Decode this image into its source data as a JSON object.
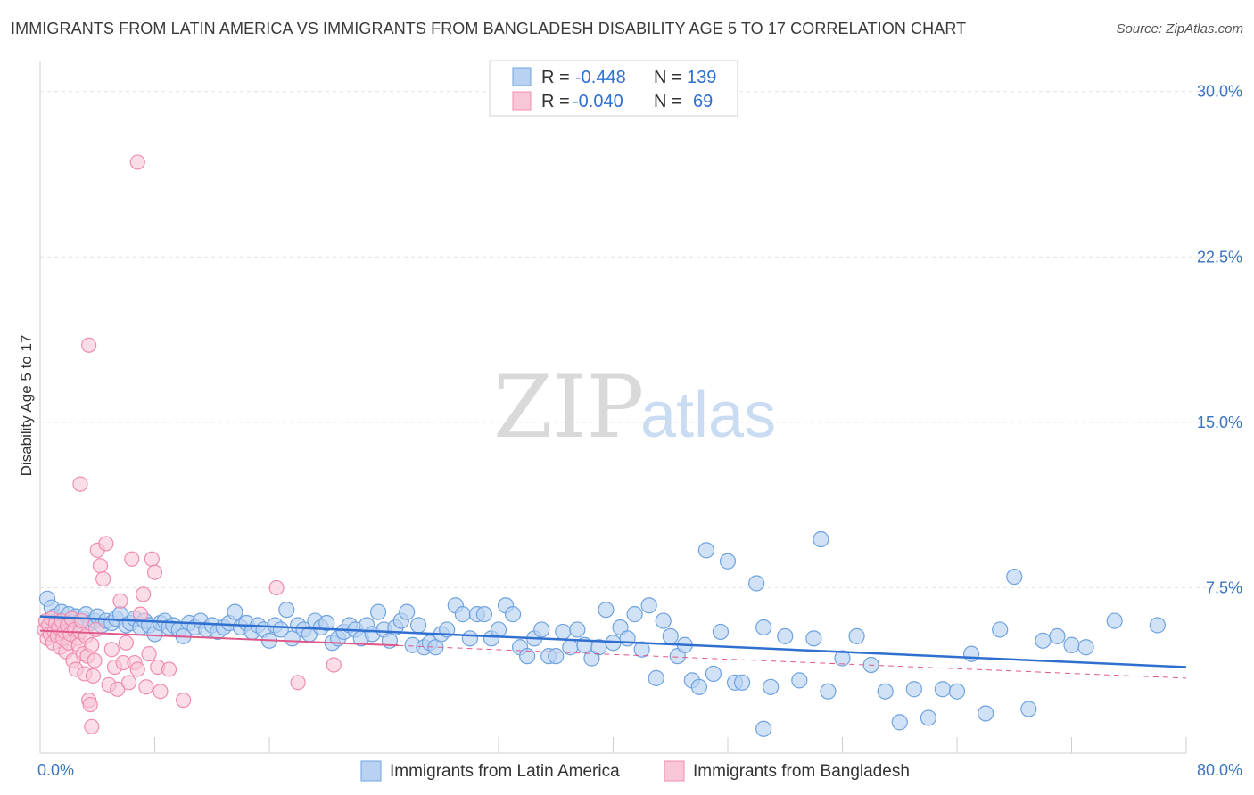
{
  "header": {
    "title": "IMMIGRANTS FROM LATIN AMERICA VS IMMIGRANTS FROM BANGLADESH DISABILITY AGE 5 TO 17 CORRELATION CHART",
    "source": "Source: ZipAtlas.com"
  },
  "watermark": {
    "zip": "ZIP",
    "atlas": "atlas"
  },
  "colors": {
    "blue": "#6fa3e0",
    "blue_fill": "#b9d2f2",
    "blue_line": "#2f6fcf",
    "pink": "#f08cb0",
    "pink_fill": "#f8c6d7",
    "pink_line": "#e0578a",
    "grid": "#e2e2e2",
    "axis_text": "#3b74c4"
  },
  "legend": {
    "rows": [
      {
        "r_label": "R = ",
        "r_value": "-0.448",
        "n_label": "N = ",
        "n_value": "139"
      },
      {
        "r_label": "R = ",
        "r_value": "-0.040",
        "n_label": "N = ",
        "n_value": "69"
      }
    ]
  },
  "bottom_legend": {
    "series1": "Immigrants from Latin America",
    "series2": "Immigrants from Bangladesh"
  },
  "chart_data": {
    "type": "scatter",
    "title": "IMMIGRANTS FROM LATIN AMERICA VS IMMIGRANTS FROM BANGLADESH DISABILITY AGE 5 TO 17 CORRELATION CHART",
    "xlabel": "",
    "ylabel": "Disability Age 5 to 17",
    "xlim": [
      0,
      80
    ],
    "ylim": [
      0,
      31
    ],
    "x_tick_labels": [
      "0.0%",
      "80.0%"
    ],
    "y_ticks": [
      7.5,
      15.0,
      22.5,
      30.0
    ],
    "y_tick_labels": [
      "7.5%",
      "15.0%",
      "22.5%",
      "30.0%"
    ],
    "series": [
      {
        "name": "Immigrants from Latin America",
        "R": -0.448,
        "N": 139,
        "trend": {
          "x": [
            0,
            80
          ],
          "y": [
            6.2,
            3.9
          ]
        },
        "points": [
          [
            0.5,
            7.0
          ],
          [
            0.8,
            6.6
          ],
          [
            1.0,
            6.2
          ],
          [
            1.2,
            6.0
          ],
          [
            1.5,
            6.4
          ],
          [
            1.8,
            6.1
          ],
          [
            2.0,
            6.3
          ],
          [
            2.2,
            5.9
          ],
          [
            2.5,
            6.2
          ],
          [
            2.8,
            6.0
          ],
          [
            3.0,
            6.1
          ],
          [
            3.2,
            6.3
          ],
          [
            3.5,
            5.9
          ],
          [
            3.8,
            6.0
          ],
          [
            4.0,
            6.2
          ],
          [
            4.3,
            5.8
          ],
          [
            4.6,
            6.0
          ],
          [
            5.0,
            5.9
          ],
          [
            5.3,
            6.1
          ],
          [
            5.6,
            6.3
          ],
          [
            6.0,
            5.8
          ],
          [
            6.3,
            5.9
          ],
          [
            6.6,
            6.1
          ],
          [
            7.0,
            5.7
          ],
          [
            7.3,
            6.0
          ],
          [
            7.6,
            5.8
          ],
          [
            8.0,
            5.4
          ],
          [
            8.4,
            5.9
          ],
          [
            8.7,
            6.0
          ],
          [
            9.0,
            5.7
          ],
          [
            9.3,
            5.8
          ],
          [
            9.7,
            5.6
          ],
          [
            10.0,
            5.3
          ],
          [
            10.4,
            5.9
          ],
          [
            10.8,
            5.7
          ],
          [
            11.2,
            6.0
          ],
          [
            11.6,
            5.6
          ],
          [
            12.0,
            5.8
          ],
          [
            12.4,
            5.5
          ],
          [
            12.8,
            5.7
          ],
          [
            13.2,
            5.9
          ],
          [
            13.6,
            6.4
          ],
          [
            14.0,
            5.7
          ],
          [
            14.4,
            5.9
          ],
          [
            14.8,
            5.5
          ],
          [
            15.2,
            5.8
          ],
          [
            15.6,
            5.6
          ],
          [
            16.0,
            5.1
          ],
          [
            16.4,
            5.8
          ],
          [
            16.8,
            5.6
          ],
          [
            17.2,
            6.5
          ],
          [
            17.6,
            5.2
          ],
          [
            18.0,
            5.8
          ],
          [
            18.4,
            5.6
          ],
          [
            18.8,
            5.4
          ],
          [
            19.2,
            6.0
          ],
          [
            19.6,
            5.7
          ],
          [
            20.0,
            5.9
          ],
          [
            20.4,
            5.0
          ],
          [
            20.8,
            5.2
          ],
          [
            21.2,
            5.5
          ],
          [
            21.6,
            5.8
          ],
          [
            22.0,
            5.6
          ],
          [
            22.4,
            5.2
          ],
          [
            22.8,
            5.8
          ],
          [
            23.2,
            5.4
          ],
          [
            23.6,
            6.4
          ],
          [
            24.0,
            5.6
          ],
          [
            24.4,
            5.1
          ],
          [
            24.8,
            5.7
          ],
          [
            25.2,
            6.0
          ],
          [
            25.6,
            6.4
          ],
          [
            26.0,
            4.9
          ],
          [
            26.4,
            5.8
          ],
          [
            26.8,
            4.8
          ],
          [
            27.2,
            5.0
          ],
          [
            27.6,
            4.8
          ],
          [
            28.0,
            5.4
          ],
          [
            28.4,
            5.6
          ],
          [
            29.0,
            6.7
          ],
          [
            29.5,
            6.3
          ],
          [
            30.0,
            5.2
          ],
          [
            30.5,
            6.3
          ],
          [
            31.0,
            6.3
          ],
          [
            31.5,
            5.2
          ],
          [
            32.0,
            5.6
          ],
          [
            32.5,
            6.7
          ],
          [
            33.0,
            6.3
          ],
          [
            33.5,
            4.8
          ],
          [
            34.0,
            4.4
          ],
          [
            34.5,
            5.2
          ],
          [
            35.0,
            5.6
          ],
          [
            35.5,
            4.4
          ],
          [
            36.0,
            4.4
          ],
          [
            36.5,
            5.5
          ],
          [
            37.0,
            4.8
          ],
          [
            37.5,
            5.6
          ],
          [
            38.0,
            4.9
          ],
          [
            38.5,
            4.3
          ],
          [
            39.0,
            4.8
          ],
          [
            39.5,
            6.5
          ],
          [
            40.0,
            5.0
          ],
          [
            40.5,
            5.7
          ],
          [
            41.0,
            5.2
          ],
          [
            41.5,
            6.3
          ],
          [
            42.0,
            4.7
          ],
          [
            42.5,
            6.7
          ],
          [
            43.0,
            3.4
          ],
          [
            43.5,
            6.0
          ],
          [
            44.0,
            5.3
          ],
          [
            44.5,
            4.4
          ],
          [
            45.0,
            4.9
          ],
          [
            45.5,
            3.3
          ],
          [
            46.0,
            3.0
          ],
          [
            46.5,
            9.2
          ],
          [
            47.0,
            3.6
          ],
          [
            47.5,
            5.5
          ],
          [
            48.0,
            8.7
          ],
          [
            48.5,
            3.2
          ],
          [
            49.0,
            3.2
          ],
          [
            50.0,
            7.7
          ],
          [
            50.5,
            5.7
          ],
          [
            51.0,
            3.0
          ],
          [
            52.0,
            5.3
          ],
          [
            53.0,
            3.3
          ],
          [
            54.0,
            5.2
          ],
          [
            54.5,
            9.7
          ],
          [
            55.0,
            2.8
          ],
          [
            56.0,
            4.3
          ],
          [
            57.0,
            5.3
          ],
          [
            58.0,
            4.0
          ],
          [
            59.0,
            2.8
          ],
          [
            60.0,
            1.4
          ],
          [
            61.0,
            2.9
          ],
          [
            62.0,
            1.6
          ],
          [
            63.0,
            2.9
          ],
          [
            64.0,
            2.8
          ],
          [
            65.0,
            4.5
          ],
          [
            66.0,
            1.8
          ],
          [
            67.0,
            5.6
          ],
          [
            68.0,
            8.0
          ],
          [
            69.0,
            2.0
          ],
          [
            70.0,
            5.1
          ],
          [
            71.0,
            5.3
          ],
          [
            72.0,
            4.9
          ],
          [
            73.0,
            4.8
          ],
          [
            75.0,
            6.0
          ],
          [
            78.0,
            5.8
          ],
          [
            50.5,
            1.1
          ]
        ]
      },
      {
        "name": "Immigrants from Bangladesh",
        "R": -0.04,
        "N": 69,
        "trend": {
          "x": [
            0,
            80
          ],
          "y": [
            5.55,
            3.4
          ]
        },
        "points": [
          [
            0.3,
            5.6
          ],
          [
            0.4,
            6.0
          ],
          [
            0.5,
            5.2
          ],
          [
            0.6,
            5.8
          ],
          [
            0.7,
            5.4
          ],
          [
            0.8,
            6.1
          ],
          [
            0.9,
            5.0
          ],
          [
            1.0,
            5.5
          ],
          [
            1.1,
            5.9
          ],
          [
            1.2,
            5.3
          ],
          [
            1.3,
            5.7
          ],
          [
            1.4,
            4.8
          ],
          [
            1.5,
            6.0
          ],
          [
            1.6,
            5.2
          ],
          [
            1.7,
            5.5
          ],
          [
            1.8,
            4.6
          ],
          [
            1.9,
            5.8
          ],
          [
            2.0,
            5.0
          ],
          [
            2.1,
            5.4
          ],
          [
            2.2,
            6.1
          ],
          [
            2.3,
            4.2
          ],
          [
            2.4,
            5.6
          ],
          [
            2.5,
            3.8
          ],
          [
            2.6,
            5.2
          ],
          [
            2.7,
            4.9
          ],
          [
            2.8,
            5.5
          ],
          [
            2.9,
            6.0
          ],
          [
            3.0,
            4.5
          ],
          [
            3.1,
            3.6
          ],
          [
            3.2,
            5.3
          ],
          [
            3.3,
            4.4
          ],
          [
            3.4,
            2.4
          ],
          [
            3.5,
            2.2
          ],
          [
            3.6,
            4.9
          ],
          [
            3.7,
            3.5
          ],
          [
            3.8,
            4.2
          ],
          [
            3.9,
            5.6
          ],
          [
            4.0,
            9.2
          ],
          [
            4.2,
            8.5
          ],
          [
            4.4,
            7.9
          ],
          [
            4.6,
            9.5
          ],
          [
            4.8,
            3.1
          ],
          [
            5.0,
            4.7
          ],
          [
            5.2,
            3.9
          ],
          [
            5.4,
            2.9
          ],
          [
            5.6,
            6.9
          ],
          [
            5.8,
            4.1
          ],
          [
            6.0,
            5.0
          ],
          [
            6.2,
            3.2
          ],
          [
            6.4,
            8.8
          ],
          [
            6.6,
            4.1
          ],
          [
            6.8,
            3.8
          ],
          [
            7.0,
            6.3
          ],
          [
            7.2,
            7.2
          ],
          [
            7.4,
            3.0
          ],
          [
            7.6,
            4.5
          ],
          [
            7.8,
            8.8
          ],
          [
            8.0,
            8.2
          ],
          [
            8.2,
            3.9
          ],
          [
            8.4,
            2.8
          ],
          [
            9.0,
            3.8
          ],
          [
            10.0,
            2.4
          ],
          [
            2.8,
            12.2
          ],
          [
            3.6,
            1.2
          ],
          [
            6.8,
            26.8
          ],
          [
            3.4,
            18.5
          ],
          [
            16.5,
            7.5
          ],
          [
            18.0,
            3.2
          ],
          [
            20.5,
            4.0
          ]
        ]
      }
    ]
  }
}
